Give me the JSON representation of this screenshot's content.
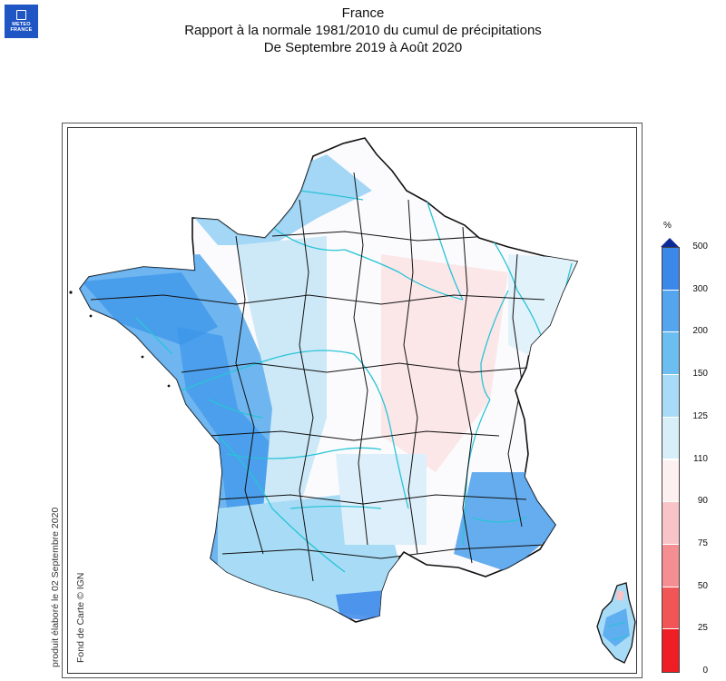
{
  "header": {
    "logo_line1": "METEO",
    "logo_line2": "FRANCE",
    "title": "France",
    "subtitle1": "Rapport à la normale 1981/2010 du cumul de précipitations",
    "subtitle2": "De Septembre 2019 à Août 2020"
  },
  "side": {
    "produced": "produit élaboré le 02 Septembre 2020",
    "basemap": "Fond de Carte © IGN"
  },
  "legend": {
    "unit": "%",
    "labels": [
      "500",
      "300",
      "200",
      "150",
      "125",
      "110",
      "90",
      "75",
      "50",
      "25",
      "0"
    ],
    "colors": [
      "#1e55e8",
      "#3c87ea",
      "#55a4ee",
      "#6cbdf0",
      "#a8dcf6",
      "#d8effa",
      "#fdf0f0",
      "#f8c4c8",
      "#f58e93",
      "#f25556",
      "#ee1e24"
    ],
    "arrow_color": "#0b2a96"
  },
  "map_colors": {
    "very_wet": "#3c95ea",
    "wet": "#6cbdf0",
    "slightly_wet": "#cde9f8",
    "normal": "#fbfbfd",
    "slightly_dry": "#fbe6e8",
    "rivers": "#29c4d6",
    "borders": "#111111"
  }
}
